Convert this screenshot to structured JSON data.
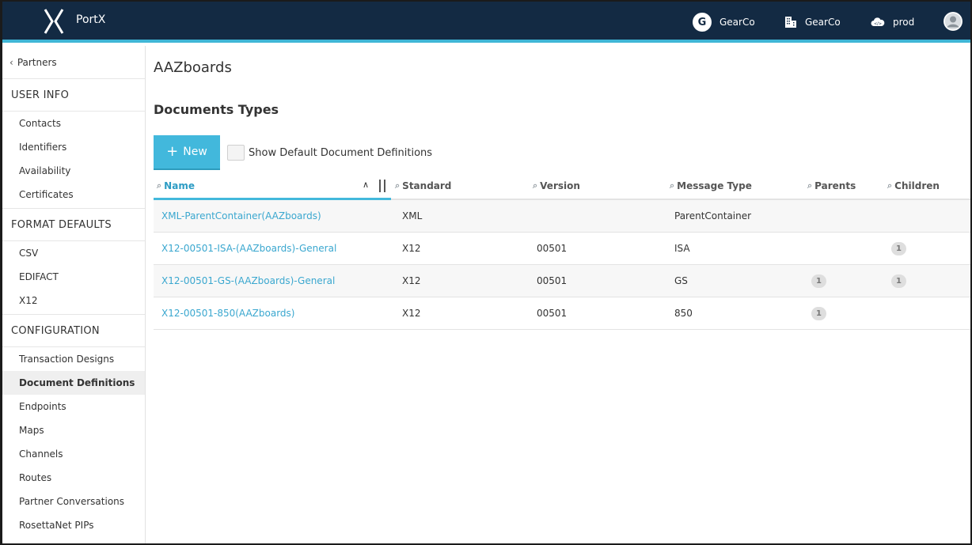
{
  "app": {
    "brand": "PortX"
  },
  "topbar": {
    "org_initial": "G",
    "org_label": "GearCo",
    "company_label": "GearCo",
    "env_label": "prod"
  },
  "sidebar": {
    "back_label": "Partners",
    "sections": [
      {
        "heading": "USER INFO",
        "items": [
          "Contacts",
          "Identifiers",
          "Availability",
          "Certificates"
        ]
      },
      {
        "heading": "FORMAT DEFAULTS",
        "items": [
          "CSV",
          "EDIFACT",
          "X12"
        ]
      },
      {
        "heading": "CONFIGURATION",
        "items": [
          "Transaction Designs",
          "Document Definitions",
          "Endpoints",
          "Maps",
          "Channels",
          "Routes",
          "Partner Conversations",
          "RosettaNet PIPs"
        ]
      }
    ],
    "active_item": "Document Definitions"
  },
  "main": {
    "title": "AAZboards",
    "section_title": "Documents Types",
    "new_button_label": "New",
    "show_default_label": "Show Default Document Definitions"
  },
  "table": {
    "columns": [
      "Name",
      "Standard",
      "Version",
      "Message Type",
      "Parents",
      "Children"
    ],
    "rows": [
      {
        "name": "XML-ParentContainer(AAZboards)",
        "standard": "XML",
        "version": "",
        "message_type": "ParentContainer",
        "parents": "",
        "children": ""
      },
      {
        "name": "X12-00501-ISA-(AAZboards)-General",
        "standard": "X12",
        "version": "00501",
        "message_type": "ISA",
        "parents": "",
        "children": "1"
      },
      {
        "name": "X12-00501-GS-(AAZboards)-General",
        "standard": "X12",
        "version": "00501",
        "message_type": "GS",
        "parents": "1",
        "children": "1"
      },
      {
        "name": "X12-00501-850(AAZboards)",
        "standard": "X12",
        "version": "00501",
        "message_type": "850",
        "parents": "1",
        "children": ""
      }
    ]
  },
  "colors": {
    "topbar": "#132a43",
    "accent": "#42b8dc",
    "link": "#3aa7cf"
  }
}
